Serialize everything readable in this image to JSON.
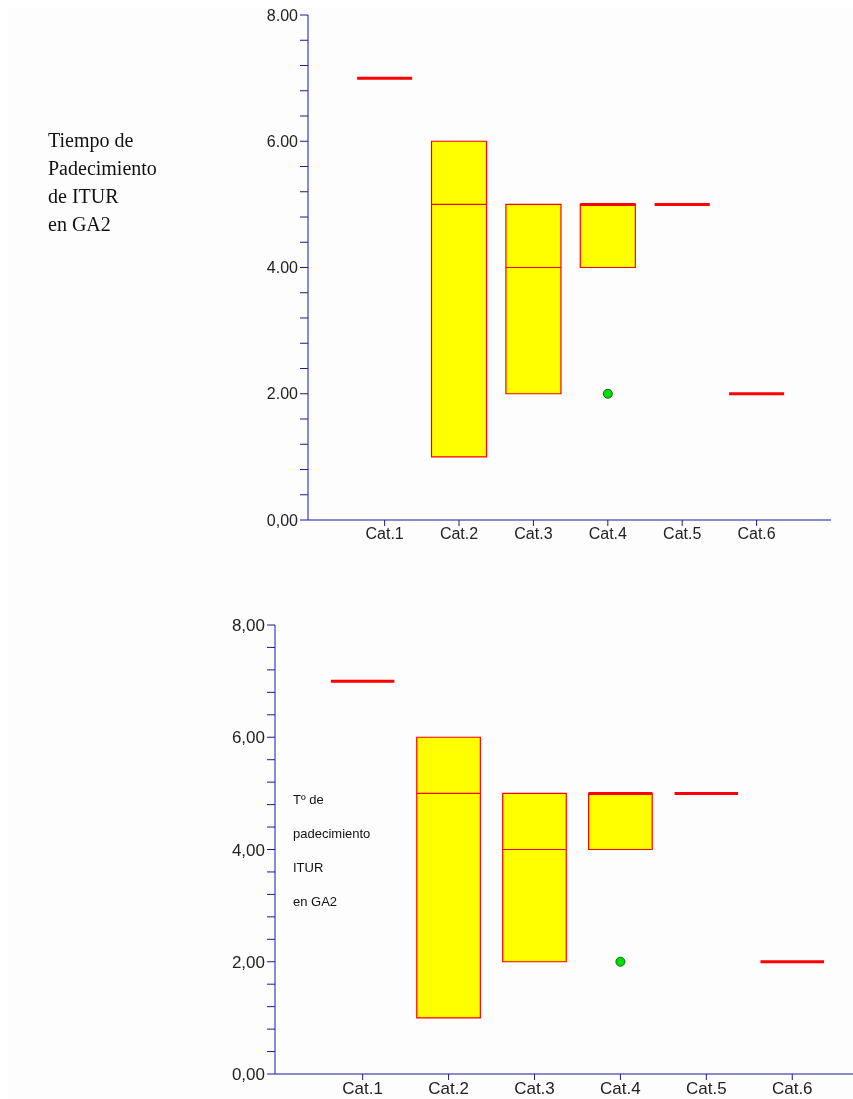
{
  "chart_data": [
    {
      "type": "box",
      "ylabel": "Tiempo de\nPadecimiento\nde ITUR\nen GA2",
      "categories": [
        "Cat.1",
        "Cat.2",
        "Cat.3",
        "Cat.4",
        "Cat.5",
        "Cat.6"
      ],
      "colors": [
        "#ff0000",
        "#ffff00",
        "#ffff00",
        "#ffff00",
        "#ff0000",
        "#ff0000"
      ],
      "boxes": [
        {
          "low": 7,
          "q1": 7,
          "median": 7,
          "q3": 7,
          "high": 7
        },
        {
          "low": 1,
          "q1": 1,
          "median": 5,
          "q3": 6,
          "high": 6
        },
        {
          "low": 2,
          "q1": 2,
          "median": 4,
          "q3": 5,
          "high": 5
        },
        {
          "low": 4,
          "q1": 4,
          "median": 5,
          "q3": 5,
          "high": 5,
          "outliers": [
            2
          ]
        },
        {
          "low": 5,
          "q1": 5,
          "median": 5,
          "q3": 5,
          "high": 5
        },
        {
          "low": 2,
          "q1": 2,
          "median": 2,
          "q3": 2,
          "high": 2
        }
      ],
      "ylim": [
        0,
        8
      ],
      "yticks": [
        {
          "value": 0,
          "label": "0,00"
        },
        {
          "value": 0.4,
          "label": null
        },
        {
          "value": 0.8,
          "label": null
        },
        {
          "value": 1.2,
          "label": null
        },
        {
          "value": 1.6,
          "label": null
        },
        {
          "value": 2,
          "label": "2.00"
        },
        {
          "value": 2.4,
          "label": null
        },
        {
          "value": 2.8,
          "label": null
        },
        {
          "value": 3.2,
          "label": null
        },
        {
          "value": 3.6,
          "label": null
        },
        {
          "value": 4,
          "label": "4.00"
        },
        {
          "value": 4.4,
          "label": null
        },
        {
          "value": 4.8,
          "label": null
        },
        {
          "value": 5.2,
          "label": null
        },
        {
          "value": 5.6,
          "label": null
        },
        {
          "value": 6,
          "label": "6.00"
        },
        {
          "value": 6.4,
          "label": null
        },
        {
          "value": 6.8,
          "label": null
        },
        {
          "value": 7.2,
          "label": null
        },
        {
          "value": 7.6,
          "label": null
        },
        {
          "value": 8,
          "label": "8.00"
        }
      ]
    },
    {
      "type": "box",
      "ylabel": "Tº de\npadecimiento\nITUR\nen GA2",
      "categories": [
        "Cat.1",
        "Cat.2",
        "Cat.3",
        "Cat.4",
        "Cat.5",
        "Cat.6"
      ],
      "colors": [
        "#ff0000",
        "#ffff00",
        "#ffff00",
        "#ffff00",
        "#ff0000",
        "#ff0000"
      ],
      "boxes": [
        {
          "low": 7,
          "q1": 7,
          "median": 7,
          "q3": 7,
          "high": 7
        },
        {
          "low": 1,
          "q1": 1,
          "median": 5,
          "q3": 6,
          "high": 6
        },
        {
          "low": 2,
          "q1": 2,
          "median": 4,
          "q3": 5,
          "high": 5
        },
        {
          "low": 4,
          "q1": 4,
          "median": 5,
          "q3": 5,
          "high": 5,
          "outliers": [
            2
          ]
        },
        {
          "low": 5,
          "q1": 5,
          "median": 5,
          "q3": 5,
          "high": 5
        },
        {
          "low": 2,
          "q1": 2,
          "median": 2,
          "q3": 2,
          "high": 2
        }
      ],
      "ylim": [
        0,
        8
      ],
      "yticks": [
        {
          "value": 0,
          "label": "0,00"
        },
        {
          "value": 0.4,
          "label": null
        },
        {
          "value": 0.8,
          "label": null
        },
        {
          "value": 1.2,
          "label": null
        },
        {
          "value": 1.6,
          "label": null
        },
        {
          "value": 2,
          "label": "2,00"
        },
        {
          "value": 2.4,
          "label": null
        },
        {
          "value": 2.8,
          "label": null
        },
        {
          "value": 3.2,
          "label": null
        },
        {
          "value": 3.6,
          "label": null
        },
        {
          "value": 4,
          "label": "4,00"
        },
        {
          "value": 4.4,
          "label": null
        },
        {
          "value": 4.8,
          "label": null
        },
        {
          "value": 5.2,
          "label": null
        },
        {
          "value": 5.6,
          "label": null
        },
        {
          "value": 6,
          "label": "6,00"
        },
        {
          "value": 6.4,
          "label": null
        },
        {
          "value": 6.8,
          "label": null
        },
        {
          "value": 7.2,
          "label": null
        },
        {
          "value": 7.6,
          "label": null
        },
        {
          "value": 8,
          "label": "8,00"
        }
      ]
    }
  ]
}
